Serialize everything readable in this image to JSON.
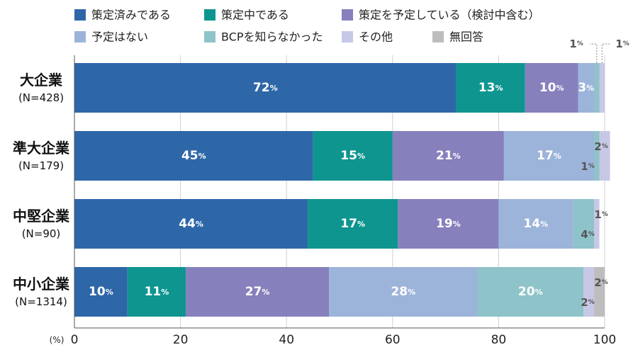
{
  "chart_data": {
    "type": "bar",
    "orientation": "horizontal",
    "stacked": true,
    "unit_label": "(%)",
    "xlim": [
      0,
      100
    ],
    "x_ticks": [
      0,
      20,
      40,
      60,
      80,
      100
    ],
    "grid": true,
    "legend_position": "top",
    "categories": [
      {
        "name": "大企業",
        "n": "(N=428)"
      },
      {
        "name": "準大企業",
        "n": "(N=179)"
      },
      {
        "name": "中堅企業",
        "n": "(N=90)"
      },
      {
        "name": "中小企業",
        "n": "(N=1314)"
      }
    ],
    "series": [
      {
        "name": "策定済みである",
        "color": "#2e67a8",
        "values": [
          72,
          45,
          44,
          10
        ]
      },
      {
        "name": "策定中である",
        "color": "#0e9590",
        "values": [
          13,
          15,
          17,
          11
        ]
      },
      {
        "name": "策定を予定している（検討中含む）",
        "color": "#8680bd",
        "values": [
          10,
          21,
          19,
          27
        ]
      },
      {
        "name": "予定はない",
        "color": "#9db4da",
        "values": [
          3,
          17,
          14,
          28
        ]
      },
      {
        "name": "BCPを知らなかった",
        "color": "#8ec3c9",
        "values": [
          1,
          1,
          4,
          20
        ]
      },
      {
        "name": "その他",
        "color": "#c7c8e6",
        "values": [
          1,
          2,
          1,
          2
        ]
      },
      {
        "name": "無回答",
        "color": "#bdbdbd",
        "values": [
          0,
          0,
          0,
          2
        ]
      }
    ],
    "inside_labels": [
      {
        "row": 0,
        "series": 0,
        "text": "72",
        "color": "#ffffff"
      },
      {
        "row": 0,
        "series": 1,
        "text": "13",
        "color": "#ffffff"
      },
      {
        "row": 0,
        "series": 2,
        "text": "10",
        "color": "#ffffff"
      },
      {
        "row": 0,
        "series": 3,
        "text": "3",
        "color": "#ffffff"
      },
      {
        "row": 1,
        "series": 0,
        "text": "45",
        "color": "#ffffff"
      },
      {
        "row": 1,
        "series": 1,
        "text": "15",
        "color": "#ffffff"
      },
      {
        "row": 1,
        "series": 2,
        "text": "21",
        "color": "#ffffff"
      },
      {
        "row": 1,
        "series": 3,
        "text": "17",
        "color": "#ffffff"
      },
      {
        "row": 2,
        "series": 0,
        "text": "44",
        "color": "#ffffff"
      },
      {
        "row": 2,
        "series": 1,
        "text": "17",
        "color": "#ffffff"
      },
      {
        "row": 2,
        "series": 2,
        "text": "19",
        "color": "#ffffff"
      },
      {
        "row": 2,
        "series": 3,
        "text": "14",
        "color": "#ffffff"
      },
      {
        "row": 3,
        "series": 0,
        "text": "10",
        "color": "#ffffff"
      },
      {
        "row": 3,
        "series": 1,
        "text": "11",
        "color": "#ffffff"
      },
      {
        "row": 3,
        "series": 2,
        "text": "27",
        "color": "#ffffff"
      },
      {
        "row": 3,
        "series": 3,
        "text": "28",
        "color": "#ffffff"
      },
      {
        "row": 3,
        "series": 4,
        "text": "20",
        "color": "#ffffff"
      }
    ],
    "outside_labels": [
      {
        "row": 0,
        "series": 4,
        "text": "1",
        "slot": "above-left",
        "leader": true
      },
      {
        "row": 0,
        "series": 5,
        "text": "1",
        "slot": "above-right",
        "leader": true
      },
      {
        "row": 1,
        "series": 5,
        "text": "2",
        "slot": "right-upper"
      },
      {
        "row": 1,
        "series": 4,
        "text": "1",
        "slot": "inner-lower"
      },
      {
        "row": 2,
        "series": 5,
        "text": "1",
        "slot": "right-upper"
      },
      {
        "row": 2,
        "series": 4,
        "text": "4",
        "slot": "inner-lower"
      },
      {
        "row": 3,
        "series": 6,
        "text": "2",
        "slot": "right-upper"
      },
      {
        "row": 3,
        "series": 5,
        "text": "2",
        "slot": "inner-lower"
      }
    ],
    "percent_suffix": "%"
  }
}
